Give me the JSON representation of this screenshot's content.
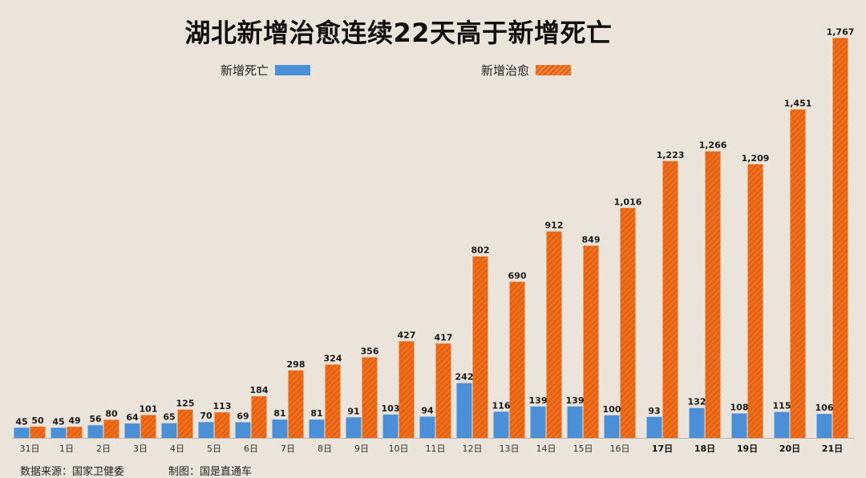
{
  "chart_data": {
    "type": "bar",
    "title": "湖北新增治愈连续22天高于新增死亡",
    "xlabel": "",
    "ylabel": "",
    "categories": [
      "31日",
      "1日",
      "2日",
      "3日",
      "4日",
      "5日",
      "6日",
      "7日",
      "8日",
      "9日",
      "10日",
      "11日",
      "12日",
      "13日",
      "14日",
      "15日",
      "16日",
      "17日",
      "18日",
      "19日",
      "20日",
      "21日"
    ],
    "series": [
      {
        "name": "新增死亡",
        "color": "#4a90d9",
        "values": [
          45,
          45,
          56,
          64,
          65,
          70,
          69,
          81,
          81,
          91,
          103,
          94,
          242,
          116,
          139,
          139,
          100,
          93,
          132,
          108,
          115,
          106
        ]
      },
      {
        "name": "新增治愈",
        "color": "#e9630f",
        "pattern": "diagonal-hatch",
        "values": [
          50,
          49,
          80,
          101,
          125,
          113,
          184,
          298,
          324,
          356,
          427,
          417,
          802,
          690,
          912,
          849,
          1016,
          1223,
          1266,
          1209,
          1451,
          1767
        ]
      }
    ],
    "ylim": [
      0,
      1800
    ],
    "grid": false,
    "legend_position": "top",
    "data_labels": true
  },
  "footer": {
    "source": "数据来源：国家卫健委",
    "credit": "制图：国是直通车"
  }
}
